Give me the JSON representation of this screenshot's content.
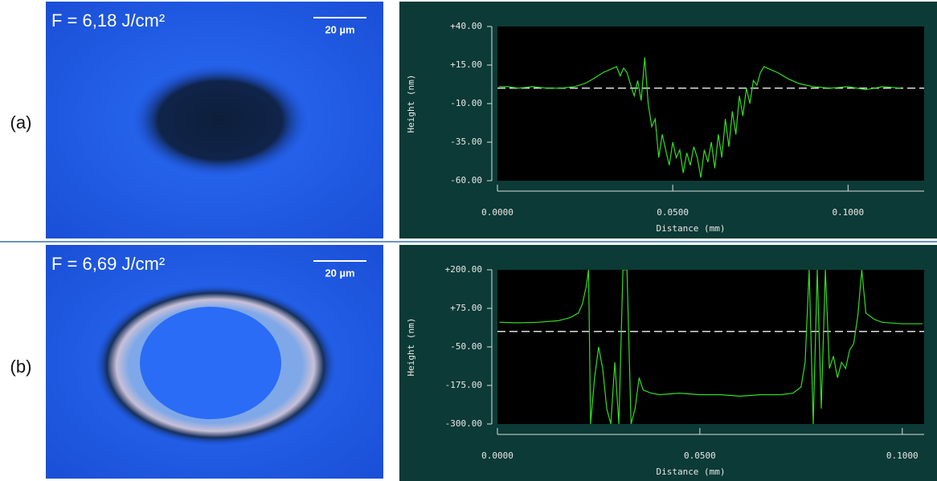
{
  "chart_data": [
    {
      "type": "line",
      "panel_label": "(a)",
      "image_annotation": "F = 6,18 J/cm²",
      "scale_bar_label": "20 µm",
      "x_label": "Distance (mm)",
      "y_label": "Height (nm)",
      "color": "#33dd22",
      "hline": 0,
      "xlim": [
        0,
        0.1217
      ],
      "ylim": [
        -60,
        40
      ],
      "xticks": [
        {
          "value": 0,
          "label": "0.0000"
        },
        {
          "value": 0.05,
          "label": "0.0500"
        },
        {
          "value": 0.1,
          "label": "0.1000"
        }
      ],
      "yticks": [
        {
          "value": 40,
          "label": "+40.00"
        },
        {
          "value": 15,
          "label": "+15.00"
        },
        {
          "value": -10,
          "label": "-10.00"
        },
        {
          "value": -35,
          "label": "-35.00"
        },
        {
          "value": -60,
          "label": "-60.00"
        }
      ],
      "x": [
        0.0005,
        0.003,
        0.006,
        0.01,
        0.014,
        0.018,
        0.022,
        0.025,
        0.028,
        0.03,
        0.032,
        0.034,
        0.035,
        0.036,
        0.037,
        0.038,
        0.039,
        0.04,
        0.041,
        0.042,
        0.043,
        0.044,
        0.045,
        0.046,
        0.047,
        0.048,
        0.049,
        0.05,
        0.051,
        0.052,
        0.053,
        0.054,
        0.055,
        0.056,
        0.057,
        0.058,
        0.059,
        0.06,
        0.061,
        0.062,
        0.063,
        0.064,
        0.065,
        0.066,
        0.067,
        0.068,
        0.069,
        0.07,
        0.071,
        0.072,
        0.073,
        0.074,
        0.075,
        0.076,
        0.078,
        0.08,
        0.083,
        0.086,
        0.09,
        0.095,
        0.1,
        0.105,
        0.11,
        0.115
      ],
      "values": [
        1,
        1,
        0,
        1,
        0,
        0,
        1,
        3,
        7,
        10,
        12,
        14,
        8,
        13,
        10,
        2,
        -5,
        5,
        -8,
        20,
        -10,
        -25,
        -20,
        -45,
        -30,
        -40,
        -50,
        -35,
        -45,
        -40,
        -55,
        -42,
        -50,
        -38,
        -45,
        -58,
        -40,
        -48,
        -35,
        -52,
        -30,
        -45,
        -20,
        -38,
        -15,
        -30,
        -5,
        -18,
        0,
        -10,
        5,
        2,
        10,
        14,
        12,
        10,
        6,
        3,
        1,
        0,
        1,
        -1,
        1,
        0
      ]
    },
    {
      "type": "line",
      "panel_label": "(b)",
      "image_annotation": "F = 6,69 J/cm²",
      "scale_bar_label": "20 µm",
      "x_label": "Distance (mm)",
      "y_label": "Height (nm)",
      "color": "#33dd22",
      "hline": 0,
      "xlim": [
        0,
        0.1054
      ],
      "ylim": [
        -300,
        200
      ],
      "xticks": [
        {
          "value": 0,
          "label": "0.0000"
        },
        {
          "value": 0.05,
          "label": "0.0500"
        },
        {
          "value": 0.1,
          "label": "0.1000"
        }
      ],
      "yticks": [
        {
          "value": 200,
          "label": "+200.00"
        },
        {
          "value": 75,
          "label": "+75.00"
        },
        {
          "value": -50,
          "label": "-50.00"
        },
        {
          "value": -175,
          "label": "-175.00"
        },
        {
          "value": -300,
          "label": "-300.00"
        }
      ],
      "x": [
        0.0005,
        0.005,
        0.01,
        0.015,
        0.018,
        0.02,
        0.021,
        0.022,
        0.0225,
        0.023,
        0.024,
        0.025,
        0.026,
        0.027,
        0.028,
        0.029,
        0.03,
        0.031,
        0.032,
        0.033,
        0.034,
        0.035,
        0.036,
        0.038,
        0.04,
        0.045,
        0.05,
        0.055,
        0.06,
        0.065,
        0.07,
        0.073,
        0.075,
        0.076,
        0.077,
        0.078,
        0.079,
        0.08,
        0.081,
        0.082,
        0.083,
        0.084,
        0.085,
        0.086,
        0.087,
        0.088,
        0.089,
        0.09,
        0.091,
        0.093,
        0.095,
        0.1,
        0.105
      ],
      "values": [
        30,
        28,
        30,
        35,
        45,
        60,
        90,
        150,
        200,
        -300,
        -150,
        -50,
        -120,
        -250,
        -300,
        -100,
        -300,
        200,
        200,
        -300,
        -250,
        -150,
        -190,
        -200,
        -205,
        -200,
        -205,
        -205,
        -210,
        -205,
        -205,
        -200,
        -180,
        -100,
        200,
        -300,
        200,
        -250,
        200,
        -120,
        -80,
        -150,
        -100,
        -120,
        -60,
        -40,
        50,
        200,
        60,
        40,
        30,
        25,
        25
      ]
    }
  ]
}
